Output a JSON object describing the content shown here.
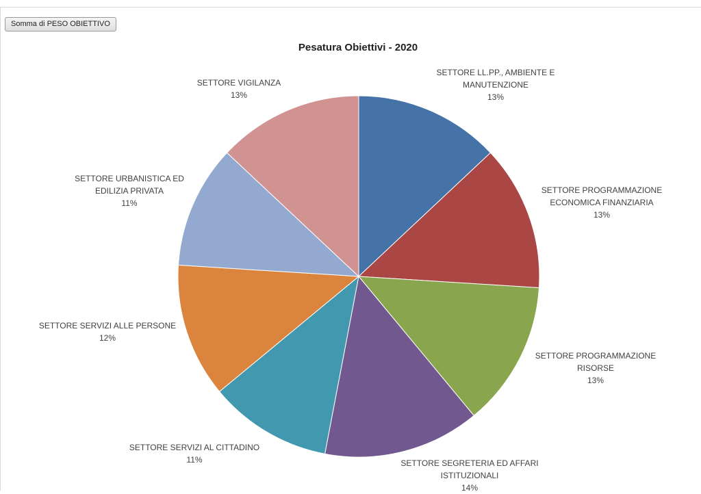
{
  "pivot_field_button": "Somma di PESO OBIETTIVO",
  "chart_data": {
    "type": "pie",
    "title": "Pesatura Obiettivi - 2020",
    "slices": [
      {
        "name": "SETTORE LL.PP., AMBIENTE E MANUTENZIONE",
        "label": "SETTORE LL.PP., AMBIENTE E\nMANUTENZIONE",
        "percent": 13,
        "percent_label": "13%",
        "color": "#4572A7"
      },
      {
        "name": "SETTORE PROGRAMMAZIONE ECONOMICA FINANZIARIA",
        "label": "SETTORE PROGRAMMAZIONE\nECONOMICA FINANZIARIA",
        "percent": 13,
        "percent_label": "13%",
        "color": "#AA4643"
      },
      {
        "name": "SETTORE PROGRAMMAZIONE RISORSE",
        "label": "SETTORE PROGRAMMAZIONE\nRISORSE",
        "percent": 13,
        "percent_label": "13%",
        "color": "#89A54E"
      },
      {
        "name": "SETTORE SEGRETERIA ED AFFARI ISTITUZIONALI",
        "label": "SETTORE SEGRETERIA ED AFFARI\nISTITUZIONALI",
        "percent": 14,
        "percent_label": "14%",
        "color": "#71588F"
      },
      {
        "name": "SETTORE SERVIZI AL CITTADINO",
        "label": "SETTORE SERVIZI AL CITTADINO",
        "percent": 11,
        "percent_label": "11%",
        "color": "#4198AF"
      },
      {
        "name": "SETTORE SERVIZI ALLE PERSONE",
        "label": "SETTORE SERVIZI ALLE PERSONE",
        "percent": 12,
        "percent_label": "12%",
        "color": "#DB843D"
      },
      {
        "name": "SETTORE URBANISTICA ED EDILIZIA PRIVATA",
        "label": "SETTORE URBANISTICA ED\nEDILIZIA PRIVATA",
        "percent": 11,
        "percent_label": "11%",
        "color": "#93A9CF"
      },
      {
        "name": "SETTORE VIGILANZA",
        "label": "SETTORE VIGILANZA",
        "percent": 13,
        "percent_label": "13%",
        "color": "#D19392"
      }
    ],
    "legend": "none",
    "start_angle": "12 o'clock",
    "direction": "clockwise"
  }
}
